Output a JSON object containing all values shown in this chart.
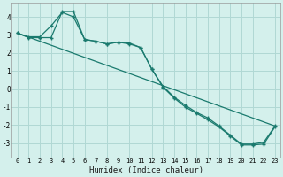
{
  "line1_x": [
    0,
    1,
    2,
    3,
    4,
    5,
    6,
    7,
    8,
    9,
    10,
    11,
    12,
    13,
    14,
    15,
    16,
    17,
    18,
    19,
    20,
    21,
    22,
    23
  ],
  "line1_y": [
    3.1,
    2.9,
    2.9,
    3.5,
    4.25,
    4.0,
    2.75,
    2.65,
    2.5,
    2.6,
    2.55,
    2.3,
    1.1,
    0.15,
    -0.45,
    -0.9,
    -1.3,
    -1.6,
    -2.05,
    -2.55,
    -3.05,
    -3.05,
    -2.95,
    -2.05
  ],
  "line2_x": [
    0,
    1,
    2,
    3,
    4,
    5,
    6,
    7,
    8,
    9,
    10,
    11,
    12,
    13,
    14,
    15,
    16,
    17,
    18,
    19,
    20,
    21,
    22,
    23
  ],
  "line2_y": [
    3.1,
    2.85,
    2.85,
    2.85,
    4.3,
    4.3,
    2.75,
    2.65,
    2.5,
    2.6,
    2.5,
    2.3,
    1.1,
    0.1,
    -0.5,
    -1.0,
    -1.35,
    -1.7,
    -2.1,
    -2.6,
    -3.1,
    -3.1,
    -3.05,
    -2.1
  ],
  "line3_x": [
    0,
    23
  ],
  "line3_y": [
    3.1,
    -2.05
  ],
  "bg_color": "#d4f0ec",
  "grid_color": "#b0d8d4",
  "line_color": "#1a7a6e",
  "xlabel": "Humidex (Indice chaleur)",
  "ylim": [
    -3.8,
    4.8
  ],
  "xlim": [
    -0.5,
    23.5
  ],
  "yticks": [
    -3,
    -2,
    -1,
    0,
    1,
    2,
    3,
    4
  ],
  "xticks": [
    0,
    1,
    2,
    3,
    4,
    5,
    6,
    7,
    8,
    9,
    10,
    11,
    12,
    13,
    14,
    15,
    16,
    17,
    18,
    19,
    20,
    21,
    22,
    23
  ]
}
